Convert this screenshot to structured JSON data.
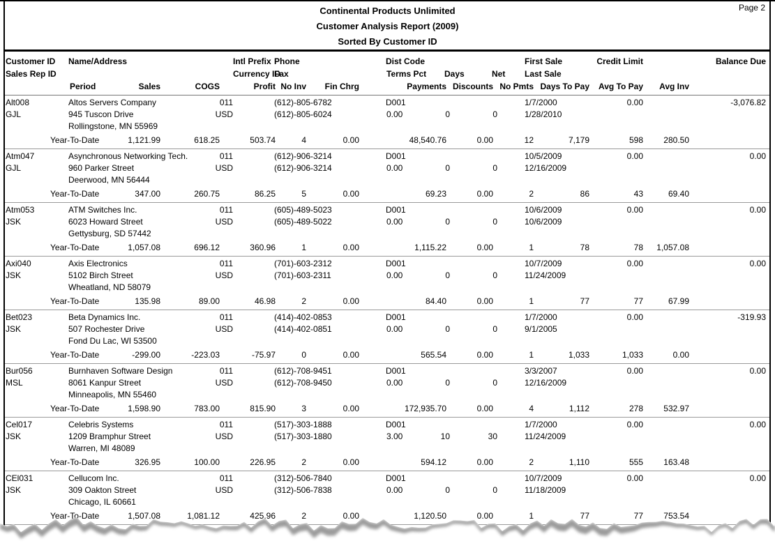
{
  "report": {
    "page_label": "Page 2",
    "company": "Continental Products Unlimited",
    "title": "Customer Analysis Report (2009)",
    "subtitle": "Sorted By Customer ID"
  },
  "headers": {
    "customer_id": "Customer ID",
    "sales_rep_id": "Sales Rep ID",
    "name_address": "Name/Address",
    "intl_prefix": "Intl Prefix",
    "currency_id": "Currency ID",
    "phone": "Phone",
    "fax": "Fax",
    "dist_code": "Dist Code",
    "terms_pct": "Terms Pct",
    "days": "Days",
    "net": "Net",
    "first_sale": "First Sale",
    "last_sale": "Last Sale",
    "credit_limit": "Credit Limit",
    "balance_due": "Balance Due",
    "period": "Period",
    "sales": "Sales",
    "cogs": "COGS",
    "profit": "Profit",
    "no_inv": "No Inv",
    "fin_chrg": "Fin Chrg",
    "payments": "Payments",
    "discounts": "Discounts",
    "no_pmts": "No Pmts",
    "days_to_pay": "Days To Pay",
    "avg_to_pay": "Avg To Pay",
    "avg_inv": "Avg Inv"
  },
  "customers": [
    {
      "id": "Alt008",
      "rep": "GJL",
      "name": "Altos Servers Company",
      "address": "945 Tuscon Drive",
      "city": "Rollingstone, MN 55969",
      "intl_prefix": "011",
      "currency": "USD",
      "phone": "(612)-805-6782",
      "fax": "(612)-805-6024",
      "dist_code": "D001",
      "terms_pct": "0.00",
      "days": "0",
      "net": "0",
      "first_sale": "1/7/2000",
      "last_sale": "1/28/2010",
      "credit_limit": "0.00",
      "balance_due": "-3,076.82",
      "ytd": {
        "label": "Year-To-Date",
        "sales": "1,121.99",
        "cogs": "618.25",
        "profit": "503.74",
        "no_inv": "4",
        "fin_chrg": "0.00",
        "payments": "48,540.76",
        "discounts": "0.00",
        "no_pmts": "12",
        "days_to_pay": "7,179",
        "avg_to_pay": "598",
        "avg_inv": "280.50"
      }
    },
    {
      "id": "Atm047",
      "rep": "GJL",
      "name": "Asynchronous Networking Tech.",
      "address": "960 Parker Street",
      "city": "Deerwood, MN 56444",
      "intl_prefix": "011",
      "currency": "USD",
      "phone": "(612)-906-3214",
      "fax": "(612)-906-3214",
      "dist_code": "D001",
      "terms_pct": "0.00",
      "days": "0",
      "net": "0",
      "first_sale": "10/5/2009",
      "last_sale": "12/16/2009",
      "credit_limit": "0.00",
      "balance_due": "0.00",
      "ytd": {
        "label": "Year-To-Date",
        "sales": "347.00",
        "cogs": "260.75",
        "profit": "86.25",
        "no_inv": "5",
        "fin_chrg": "0.00",
        "payments": "69.23",
        "discounts": "0.00",
        "no_pmts": "2",
        "days_to_pay": "86",
        "avg_to_pay": "43",
        "avg_inv": "69.40"
      }
    },
    {
      "id": "Atm053",
      "rep": "JSK",
      "name": "ATM Switches Inc.",
      "address": "6023 Howard Street",
      "city": "Gettysburg, SD 57442",
      "intl_prefix": "011",
      "currency": "USD",
      "phone": "(605)-489-5023",
      "fax": "(605)-489-5022",
      "dist_code": "D001",
      "terms_pct": "0.00",
      "days": "0",
      "net": "0",
      "first_sale": "10/6/2009",
      "last_sale": "10/6/2009",
      "credit_limit": "0.00",
      "balance_due": "0.00",
      "ytd": {
        "label": "Year-To-Date",
        "sales": "1,057.08",
        "cogs": "696.12",
        "profit": "360.96",
        "no_inv": "1",
        "fin_chrg": "0.00",
        "payments": "1,115.22",
        "discounts": "0.00",
        "no_pmts": "1",
        "days_to_pay": "78",
        "avg_to_pay": "78",
        "avg_inv": "1,057.08"
      }
    },
    {
      "id": "Axi040",
      "rep": "JSK",
      "name": "Axis Electronics",
      "address": "5102 Birch Street",
      "city": "Wheatland, ND 58079",
      "intl_prefix": "011",
      "currency": "USD",
      "phone": "(701)-603-2312",
      "fax": "(701)-603-2311",
      "dist_code": "D001",
      "terms_pct": "0.00",
      "days": "0",
      "net": "0",
      "first_sale": "10/7/2009",
      "last_sale": "11/24/2009",
      "credit_limit": "0.00",
      "balance_due": "0.00",
      "ytd": {
        "label": "Year-To-Date",
        "sales": "135.98",
        "cogs": "89.00",
        "profit": "46.98",
        "no_inv": "2",
        "fin_chrg": "0.00",
        "payments": "84.40",
        "discounts": "0.00",
        "no_pmts": "1",
        "days_to_pay": "77",
        "avg_to_pay": "77",
        "avg_inv": "67.99"
      }
    },
    {
      "id": "Bet023",
      "rep": "JSK",
      "name": "Beta Dynamics Inc.",
      "address": "507 Rochester Drive",
      "city": "Fond Du Lac, WI 53500",
      "intl_prefix": "011",
      "currency": "USD",
      "phone": "(414)-402-0853",
      "fax": "(414)-402-0851",
      "dist_code": "D001",
      "terms_pct": "0.00",
      "days": "0",
      "net": "0",
      "first_sale": "1/7/2000",
      "last_sale": "9/1/2005",
      "credit_limit": "0.00",
      "balance_due": "-319.93",
      "ytd": {
        "label": "Year-To-Date",
        "sales": "-299.00",
        "cogs": "-223.03",
        "profit": "-75.97",
        "no_inv": "0",
        "fin_chrg": "0.00",
        "payments": "565.54",
        "discounts": "0.00",
        "no_pmts": "1",
        "days_to_pay": "1,033",
        "avg_to_pay": "1,033",
        "avg_inv": "0.00"
      }
    },
    {
      "id": "Bur056",
      "rep": "MSL",
      "name": "Burnhaven Software Design",
      "address": "8061 Kanpur Street",
      "city": "Minneapolis, MN 55460",
      "intl_prefix": "011",
      "currency": "USD",
      "phone": "(612)-708-9451",
      "fax": "(612)-708-9450",
      "dist_code": "D001",
      "terms_pct": "0.00",
      "days": "0",
      "net": "0",
      "first_sale": "3/3/2007",
      "last_sale": "12/16/2009",
      "credit_limit": "0.00",
      "balance_due": "0.00",
      "ytd": {
        "label": "Year-To-Date",
        "sales": "1,598.90",
        "cogs": "783.00",
        "profit": "815.90",
        "no_inv": "3",
        "fin_chrg": "0.00",
        "payments": "172,935.70",
        "discounts": "0.00",
        "no_pmts": "4",
        "days_to_pay": "1,112",
        "avg_to_pay": "278",
        "avg_inv": "532.97"
      }
    },
    {
      "id": "Cel017",
      "rep": "JSK",
      "name": "Celebris Systems",
      "address": "1209 Bramphur Street",
      "city": "Warren, MI 48089",
      "intl_prefix": "011",
      "currency": "USD",
      "phone": "(517)-303-1888",
      "fax": "(517)-303-1880",
      "dist_code": "D001",
      "terms_pct": "3.00",
      "days": "10",
      "net": "30",
      "first_sale": "1/7/2000",
      "last_sale": "11/24/2009",
      "credit_limit": "0.00",
      "balance_due": "0.00",
      "ytd": {
        "label": "Year-To-Date",
        "sales": "326.95",
        "cogs": "100.00",
        "profit": "226.95",
        "no_inv": "2",
        "fin_chrg": "0.00",
        "payments": "594.12",
        "discounts": "0.00",
        "no_pmts": "2",
        "days_to_pay": "1,110",
        "avg_to_pay": "555",
        "avg_inv": "163.48"
      }
    },
    {
      "id": "CEl031",
      "rep": "JSK",
      "name": "Cellucom Inc.",
      "address": "309 Oakton Street",
      "city": "Chicago, IL 60661",
      "intl_prefix": "011",
      "currency": "USD",
      "phone": "(312)-506-7840",
      "fax": "(312)-506-7838",
      "dist_code": "D001",
      "terms_pct": "0.00",
      "days": "0",
      "net": "0",
      "first_sale": "10/7/2009",
      "last_sale": "11/18/2009",
      "credit_limit": "0.00",
      "balance_due": "0.00",
      "ytd": {
        "label": "Year-To-Date",
        "sales": "1,507.08",
        "cogs": "1,081.12",
        "profit": "425.96",
        "no_inv": "2",
        "fin_chrg": "0.00",
        "payments": "1,120.50",
        "discounts": "0.00",
        "no_pmts": "1",
        "days_to_pay": "77",
        "avg_to_pay": "77",
        "avg_inv": "753.54"
      }
    }
  ]
}
